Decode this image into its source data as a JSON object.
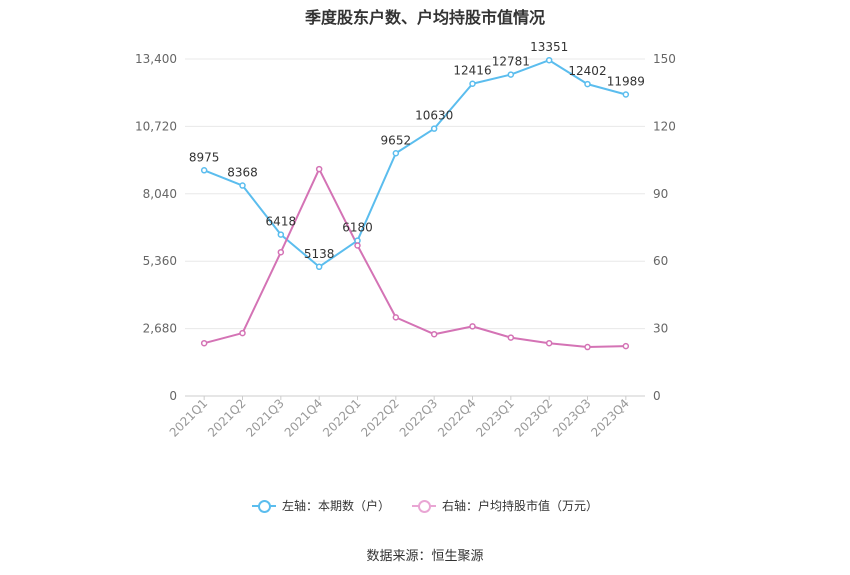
{
  "chart_data": {
    "type": "line",
    "title": "季度股东户数、户均持股市值情况",
    "categories": [
      "2021Q1",
      "2021Q2",
      "2021Q3",
      "2021Q4",
      "2022Q1",
      "2022Q2",
      "2022Q3",
      "2022Q4",
      "2023Q1",
      "2023Q2",
      "2023Q3",
      "2023Q4"
    ],
    "left_axis": {
      "ylim": [
        0,
        13400
      ],
      "ticks": [
        "0",
        "2,680",
        "5,360",
        "8,040",
        "10,720",
        "13,400"
      ]
    },
    "right_axis": {
      "ylim": [
        0,
        150
      ],
      "ticks": [
        "0",
        "30",
        "60",
        "90",
        "120",
        "150"
      ]
    },
    "series": [
      {
        "name": "左轴：本期数（户）",
        "axis": "left",
        "color": "#5bbdee",
        "values": [
          8975,
          8368,
          6418,
          5138,
          6180,
          9652,
          10630,
          12416,
          12781,
          13351,
          12402,
          11989
        ],
        "labels": [
          "8975",
          "8368",
          "6418",
          "5138",
          "6180",
          "9652",
          "10630",
          "12416",
          "12781",
          "13351",
          "12402",
          "11989"
        ]
      },
      {
        "name": "右轴：户均持股市值（万元）",
        "axis": "right",
        "color": "#d473b5",
        "values": [
          23.5,
          28,
          64,
          101,
          67,
          35,
          27.5,
          31,
          26,
          23.5,
          21.8,
          22.2
        ]
      }
    ],
    "grid": true,
    "legend": "bottom"
  },
  "source": "数据来源：恒生聚源"
}
